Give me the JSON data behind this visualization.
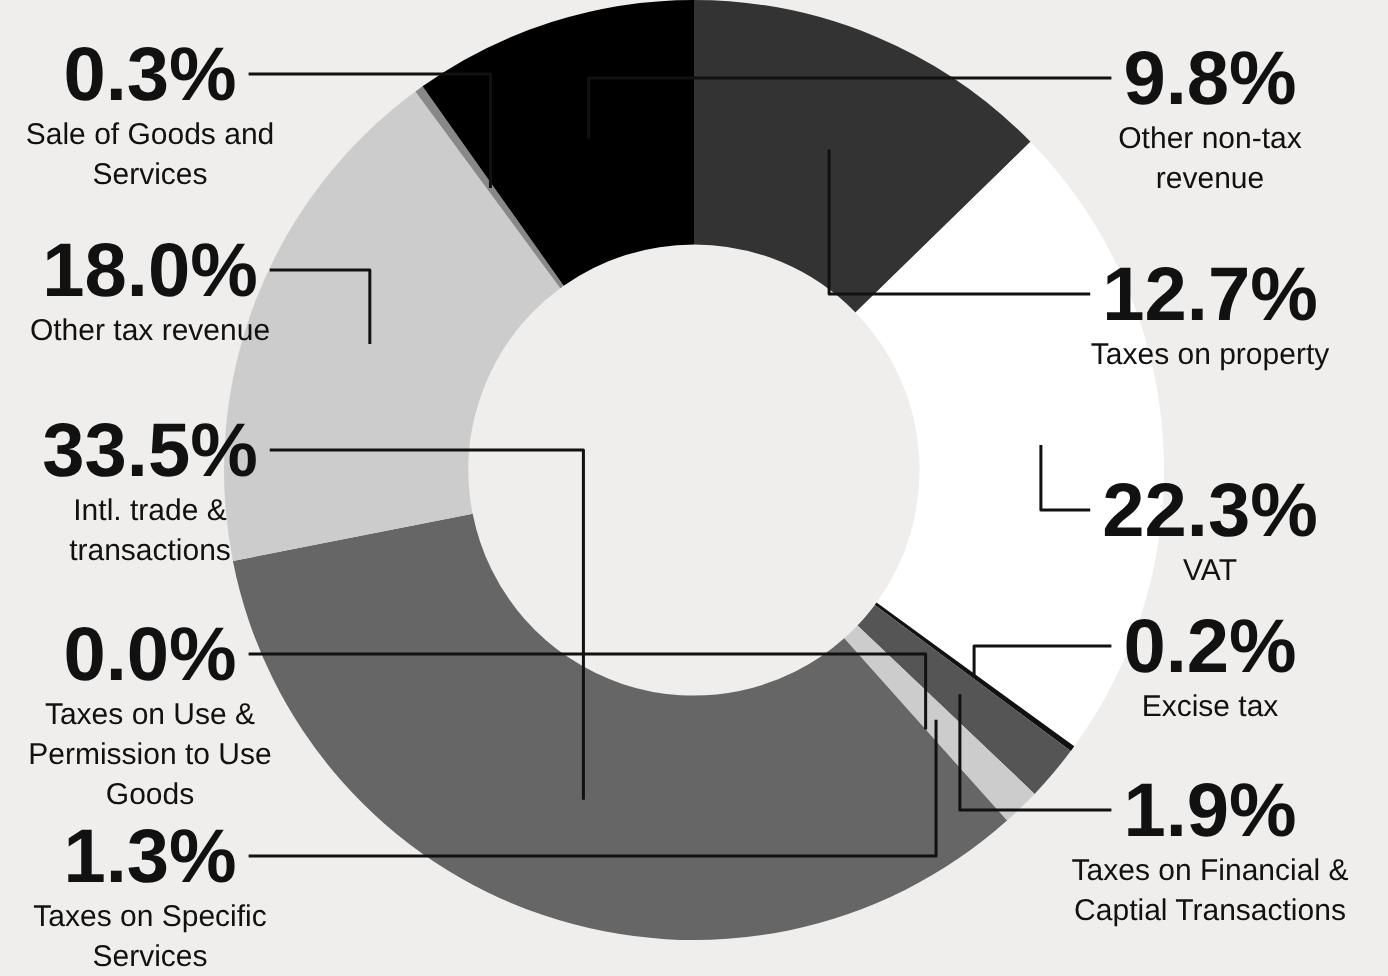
{
  "chart_data": {
    "type": "donut",
    "categories": [
      "Taxes on property",
      "VAT",
      "Excise tax",
      "Taxes on Financial & Captial Transactions",
      "Taxes on Specific Services",
      "Taxes on Use & Permission to Use Goods",
      "Intl. trade & transactions",
      "Other tax revenue",
      "Sale of Goods and Services",
      "Other non-tax revenue"
    ],
    "values": [
      12.7,
      22.3,
      0.2,
      1.9,
      1.3,
      0.0,
      33.5,
      18.0,
      0.3,
      9.8
    ],
    "colors": [
      "#333333",
      "#ffffff",
      "#111111",
      "#555555",
      "#cccccc",
      "#999999",
      "#666666",
      "#cccccc",
      "#888888",
      "#000000"
    ],
    "value_labels": [
      "12.7%",
      "22.3%",
      "0.2%",
      "1.9%",
      "1.3%",
      "0.0%",
      "33.5%",
      "18.0%",
      "0.3%",
      "9.8%"
    ]
  }
}
